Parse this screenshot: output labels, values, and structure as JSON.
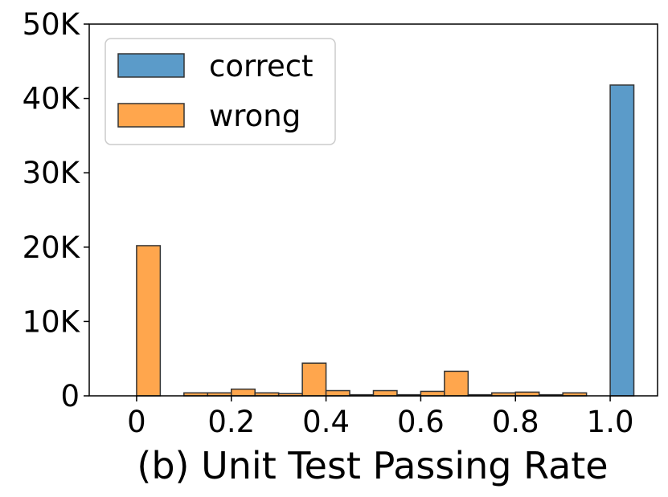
{
  "chart_data": {
    "type": "bar",
    "title": "",
    "xlabel": "(b) Unit Test Passing Rate",
    "ylabel": "",
    "xlim": [
      -0.1,
      1.1
    ],
    "ylim": [
      0,
      50000
    ],
    "bin_width": 0.05,
    "x_ticks": [
      {
        "value": 0,
        "label": "0"
      },
      {
        "value": 0.2,
        "label": "0.2"
      },
      {
        "value": 0.4,
        "label": "0.4"
      },
      {
        "value": 0.6,
        "label": "0.6"
      },
      {
        "value": 0.8,
        "label": "0.8"
      },
      {
        "value": 1.0,
        "label": "1.0"
      }
    ],
    "y_ticks": [
      {
        "value": 0,
        "label": "0"
      },
      {
        "value": 10000,
        "label": "10K"
      },
      {
        "value": 20000,
        "label": "20K"
      },
      {
        "value": 30000,
        "label": "30K"
      },
      {
        "value": 40000,
        "label": "40K"
      },
      {
        "value": 50000,
        "label": "50K"
      }
    ],
    "grid": false,
    "legend": {
      "placement": "top-left"
    },
    "series": [
      {
        "name": "correct",
        "color": "#5b9bc9",
        "bins": [
          {
            "x": 1.0,
            "value": 41800
          }
        ]
      },
      {
        "name": "wrong",
        "color": "#ffa64d",
        "bins": [
          {
            "x": 0.0,
            "value": 20200
          },
          {
            "x": 0.1,
            "value": 400
          },
          {
            "x": 0.15,
            "value": 400
          },
          {
            "x": 0.2,
            "value": 900
          },
          {
            "x": 0.25,
            "value": 400
          },
          {
            "x": 0.3,
            "value": 300
          },
          {
            "x": 0.35,
            "value": 4400
          },
          {
            "x": 0.4,
            "value": 700
          },
          {
            "x": 0.45,
            "value": 150
          },
          {
            "x": 0.5,
            "value": 700
          },
          {
            "x": 0.55,
            "value": 150
          },
          {
            "x": 0.6,
            "value": 600
          },
          {
            "x": 0.65,
            "value": 3300
          },
          {
            "x": 0.7,
            "value": 150
          },
          {
            "x": 0.75,
            "value": 400
          },
          {
            "x": 0.8,
            "value": 500
          },
          {
            "x": 0.85,
            "value": 150
          },
          {
            "x": 0.9,
            "value": 400
          }
        ]
      }
    ]
  }
}
